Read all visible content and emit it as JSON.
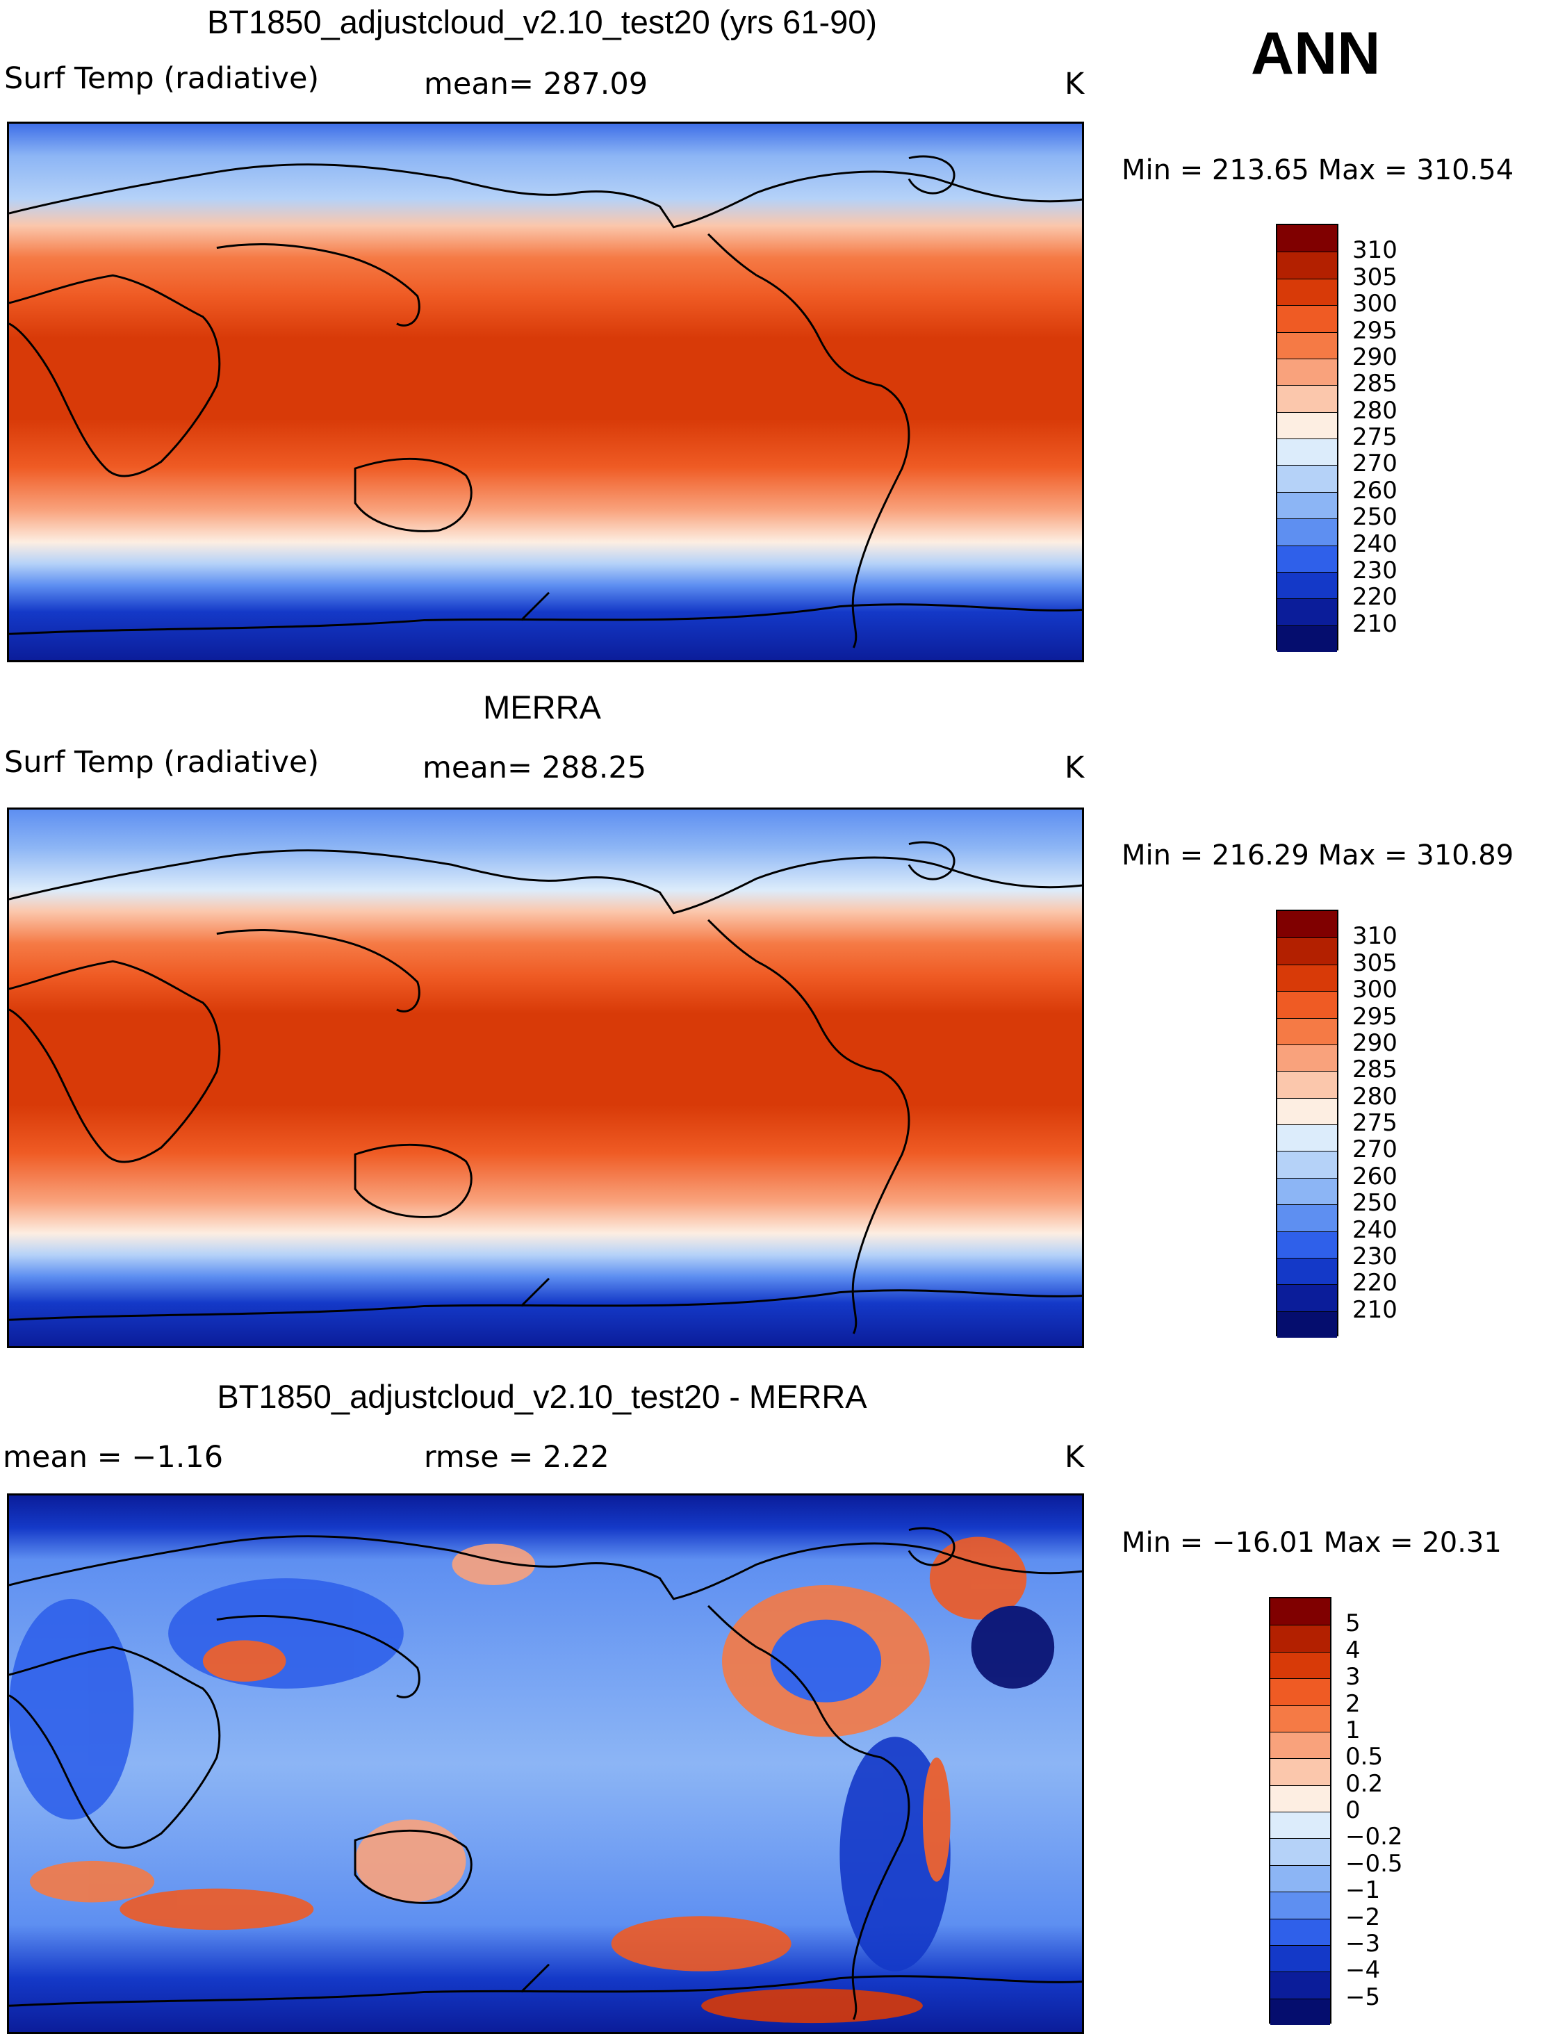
{
  "season": "ANN",
  "panels": [
    {
      "id": "model",
      "title": "BT1850_adjustcloud_v2.10_test20 (yrs 61-90)",
      "left_label": "Surf Temp (radiative)",
      "mid_label": "mean= 287.09",
      "units": "K",
      "minmax": "Min = 213.65 Max = 310.54",
      "colorbar": [
        "310",
        "305",
        "300",
        "295",
        "290",
        "285",
        "280",
        "275",
        "270",
        "260",
        "250",
        "240",
        "230",
        "220",
        "210"
      ],
      "colors": [
        "#800000",
        "#b32000",
        "#d83a08",
        "#ef5b24",
        "#f57a45",
        "#f9a27c",
        "#fbc7ac",
        "#fdeee2",
        "#dcecfb",
        "#b5d2f8",
        "#8cb5f5",
        "#5e8ff1",
        "#2f60ea",
        "#1439c8",
        "#0b1d9a",
        "#050d6e"
      ]
    },
    {
      "id": "obs",
      "title": "MERRA",
      "left_label": "Surf Temp (radiative)",
      "mid_label": "mean= 288.25",
      "units": "K",
      "minmax": "Min = 216.29 Max = 310.89",
      "colorbar": [
        "310",
        "305",
        "300",
        "295",
        "290",
        "285",
        "280",
        "275",
        "270",
        "260",
        "250",
        "240",
        "230",
        "220",
        "210"
      ],
      "colors": [
        "#800000",
        "#b32000",
        "#d83a08",
        "#ef5b24",
        "#f57a45",
        "#f9a27c",
        "#fbc7ac",
        "#fdeee2",
        "#dcecfb",
        "#b5d2f8",
        "#8cb5f5",
        "#5e8ff1",
        "#2f60ea",
        "#1439c8",
        "#0b1d9a",
        "#050d6e"
      ]
    },
    {
      "id": "diff",
      "title": "BT1850_adjustcloud_v2.10_test20 - MERRA",
      "left_label": "mean =   −1.16",
      "mid_label": "rmse =    2.22",
      "units": "K",
      "minmax": "Min = −16.01 Max =  20.31",
      "colorbar": [
        "5",
        "4",
        "3",
        "2",
        "1",
        "0.5",
        "0.2",
        "0",
        "−0.2",
        "−0.5",
        "−1",
        "−2",
        "−3",
        "−4",
        "−5"
      ],
      "colors": [
        "#800000",
        "#b32000",
        "#d83a08",
        "#ef5b24",
        "#f57a45",
        "#f9a27c",
        "#fbc7ac",
        "#fdeee2",
        "#dcecfb",
        "#b5d2f8",
        "#8cb5f5",
        "#5e8ff1",
        "#2f60ea",
        "#1439c8",
        "#0b1d9a",
        "#050d6e"
      ]
    }
  ]
}
